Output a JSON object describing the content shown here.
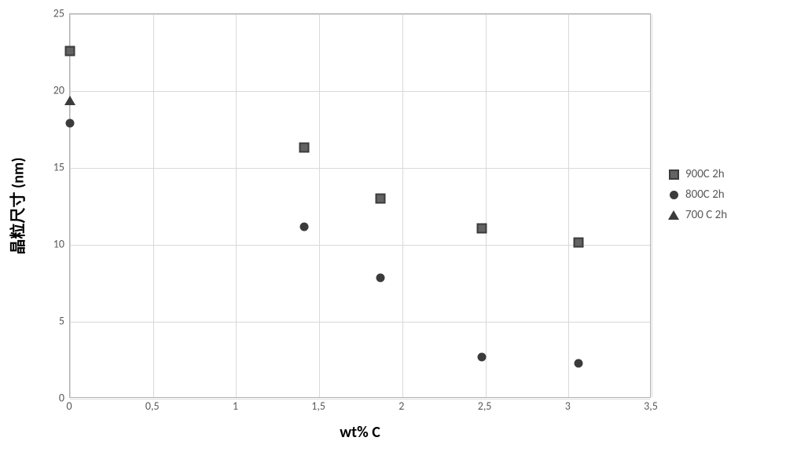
{
  "chart": {
    "type": "scatter",
    "background_color": "#ffffff",
    "plot_border_color": "#b0b0b0",
    "grid_color": "#d9d9d9",
    "tick_font_size": 14,
    "tick_font_color": "#595959",
    "axis_label_font_size": 20,
    "axis_label_font_weight": "bold",
    "axis_label_color": "#000000",
    "xlabel": "wt% C",
    "ylabel": "晶粒尺寸 (nm)",
    "xlim": [
      0,
      3.5
    ],
    "ylim": [
      0,
      25
    ],
    "xticks": [
      0,
      0.5,
      1,
      1.5,
      2,
      2.5,
      3,
      3.5
    ],
    "xtick_labels": [
      "0",
      "0,5",
      "1",
      "1,5",
      "2",
      "2,5",
      "3",
      "3,5"
    ],
    "yticks": [
      0,
      5,
      10,
      15,
      20,
      25
    ],
    "ytick_labels": [
      "0",
      "5",
      "10",
      "15",
      "20",
      "25"
    ],
    "legend_font_size": 15,
    "series": [
      {
        "name": "900C 2h",
        "marker": "square",
        "color_fill": "#636363",
        "color_border": "#3b3b3b",
        "marker_size": 13,
        "points": [
          {
            "x": 0.0,
            "y": 22.6
          },
          {
            "x": 1.41,
            "y": 16.35
          },
          {
            "x": 1.87,
            "y": 13.0
          },
          {
            "x": 2.48,
            "y": 11.05
          },
          {
            "x": 3.06,
            "y": 10.15
          }
        ]
      },
      {
        "name": "800C 2h",
        "marker": "circle",
        "color_fill": "#3b3b3b",
        "marker_size": 11,
        "points": [
          {
            "x": 0.0,
            "y": 17.9
          },
          {
            "x": 1.41,
            "y": 11.15
          },
          {
            "x": 1.87,
            "y": 7.88
          },
          {
            "x": 2.48,
            "y": 2.7
          },
          {
            "x": 3.06,
            "y": 2.3
          }
        ]
      },
      {
        "name": "700 C 2h",
        "marker": "triangle",
        "color_fill": "#3b3b3b",
        "marker_size": 12,
        "points": [
          {
            "x": 0.0,
            "y": 19.4
          }
        ]
      }
    ]
  }
}
